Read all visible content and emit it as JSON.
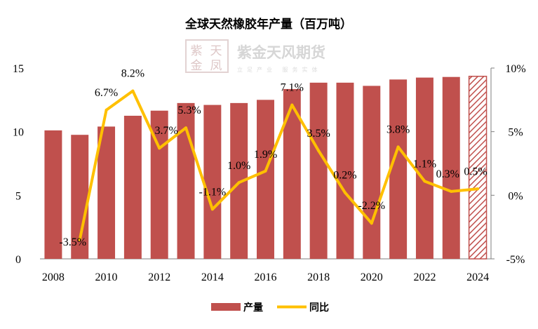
{
  "chart_data": {
    "type": "bar+line",
    "title": "全球天然橡胶年产量（百万吨）",
    "categories": [
      "2008",
      "2009",
      "2010",
      "2011",
      "2012",
      "2013",
      "2014",
      "2015",
      "2016",
      "2017",
      "2018",
      "2019",
      "2020",
      "2021",
      "2022",
      "2023",
      "2024"
    ],
    "x_tick_labels": [
      "2008",
      "2010",
      "2012",
      "2014",
      "2016",
      "2018",
      "2020",
      "2022",
      "2024"
    ],
    "series": [
      {
        "name": "产量",
        "type": "bar",
        "axis": "left",
        "color": "#c0504d",
        "values": [
          10.1,
          9.75,
          10.4,
          11.25,
          11.65,
          12.25,
          12.1,
          12.25,
          12.5,
          13.35,
          13.85,
          13.85,
          13.6,
          14.1,
          14.25,
          14.3,
          14.35
        ],
        "hatched_last": true
      },
      {
        "name": "同比",
        "type": "line",
        "axis": "right",
        "color": "#ffc000",
        "values": [
          null,
          -3.5,
          6.7,
          8.2,
          3.7,
          5.3,
          -1.1,
          1.0,
          1.9,
          7.1,
          3.5,
          0.2,
          -2.2,
          3.8,
          1.1,
          0.3,
          0.5
        ],
        "labels": [
          null,
          "-3.5%",
          "6.7%",
          "8.2%",
          "3.7%",
          "5.3%",
          "-1.1%",
          "1.0%",
          "1.9%",
          "7.1%",
          "3.5%",
          "0.2%",
          "-2.2%",
          "3.8%",
          "1.1%",
          "0.3%",
          "0.5%"
        ]
      }
    ],
    "y_left": {
      "min": 0,
      "max": 15,
      "ticks": [
        "0",
        "5",
        "10",
        "15"
      ],
      "tick_values": [
        0,
        5,
        10,
        15
      ]
    },
    "y_right": {
      "min": -5,
      "max": 10,
      "ticks": [
        "-5%",
        "0%",
        "5%",
        "10%"
      ],
      "tick_values": [
        -5,
        0,
        5,
        10
      ]
    },
    "legend": {
      "position": "bottom",
      "items": [
        "产量",
        "同比"
      ]
    },
    "grid": false
  },
  "watermark": {
    "logo_chars": [
      "紫",
      "天",
      "金",
      "凤"
    ],
    "name": "紫金天风期货",
    "slogan": "立足产业 服务实体"
  }
}
